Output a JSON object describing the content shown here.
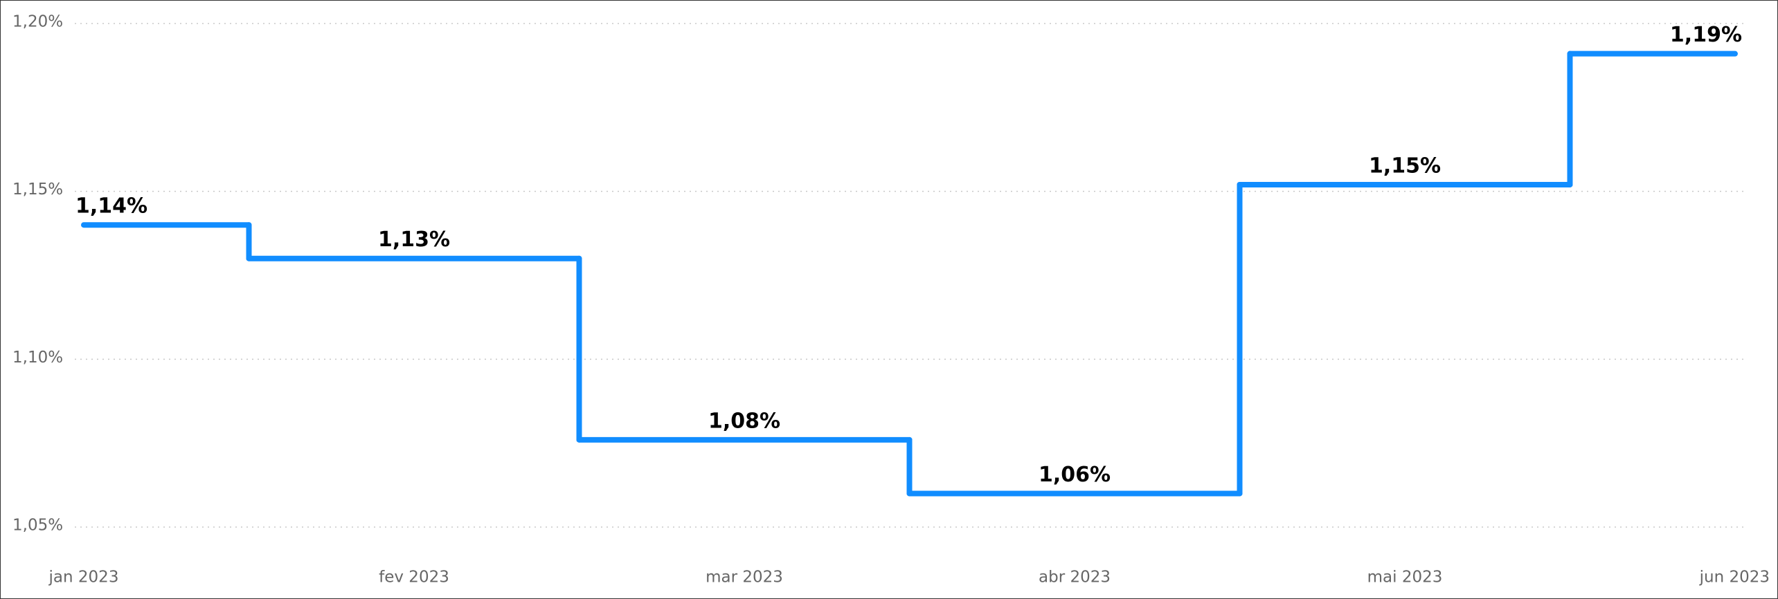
{
  "chart_data": {
    "type": "step",
    "categories": [
      "jan 2023",
      "fev 2023",
      "mar 2023",
      "abr 2023",
      "mai 2023",
      "jun 2023"
    ],
    "series": [
      {
        "color": "#118dff",
        "values": [
          1.14,
          1.13,
          1.076,
          1.06,
          1.152,
          1.191
        ],
        "value_labels": [
          "1,14%",
          "1,13%",
          "1,08%",
          "1,06%",
          "1,15%",
          "1,19%"
        ]
      }
    ],
    "ylim": [
      1.05,
      1.2
    ],
    "yticks": [
      {
        "value": 1.05,
        "label": "1,05%"
      },
      {
        "value": 1.1,
        "label": "1,10%"
      },
      {
        "value": 1.15,
        "label": "1,15%"
      },
      {
        "value": 1.2,
        "label": "1,20%"
      }
    ],
    "grid": true
  }
}
